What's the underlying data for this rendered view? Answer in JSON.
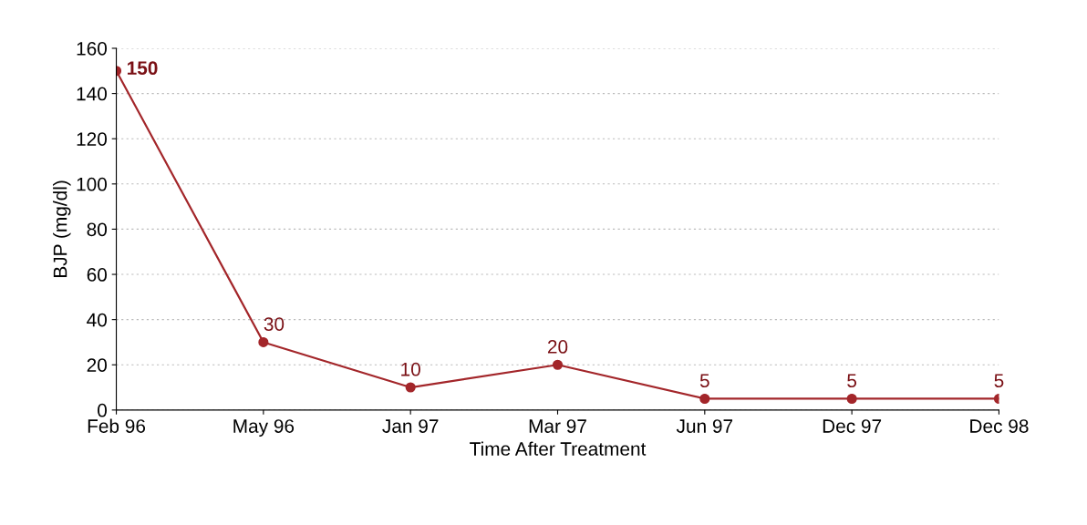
{
  "chart_data": {
    "type": "line",
    "xlabel": "Time After Treatment",
    "ylabel": "BJP (mg/dl)",
    "categories": [
      "Feb 96",
      "May 96",
      "Jan 97",
      "Mar 97",
      "Jun 97",
      "Dec 97",
      "Dec 98"
    ],
    "series": [
      {
        "color": "#a3262a",
        "values": [
          150,
          30,
          10,
          20,
          5,
          5,
          5
        ]
      }
    ],
    "ylim": [
      0,
      160
    ],
    "yticks": [
      0,
      20,
      40,
      60,
      80,
      100,
      120,
      140,
      160
    ],
    "grid": "y",
    "marker": "circle",
    "line_style": "solid",
    "data_labels": true,
    "legend": false
  }
}
